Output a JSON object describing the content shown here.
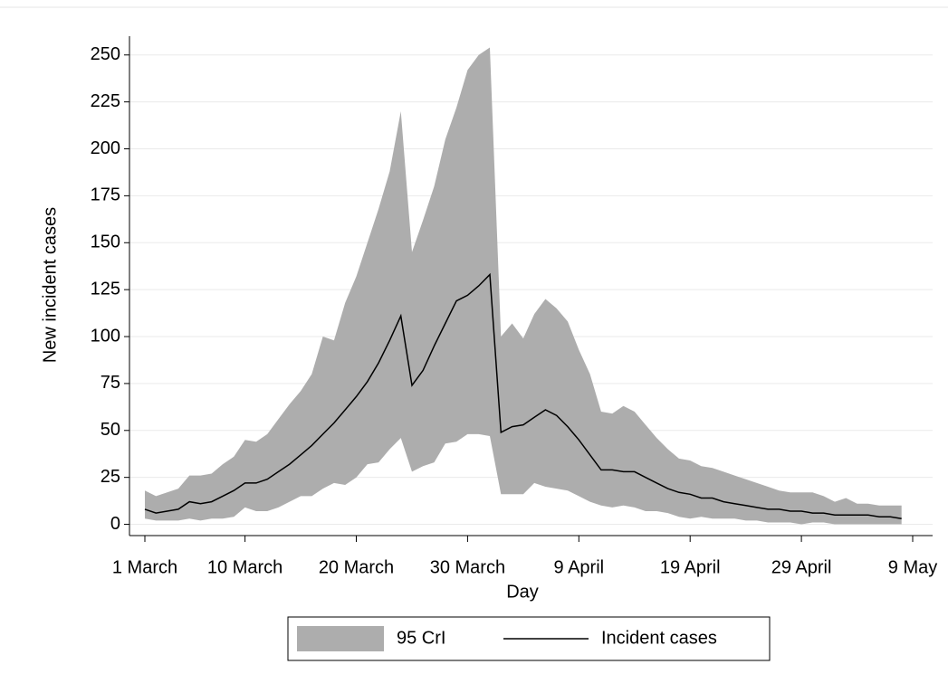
{
  "chart_data": {
    "type": "line",
    "ylabel": "New incident cases",
    "xlabel": "Day",
    "categories": [
      "1 March",
      null,
      null,
      null,
      null,
      null,
      null,
      null,
      null,
      "10 March",
      null,
      null,
      null,
      null,
      null,
      null,
      null,
      null,
      null,
      "20 March",
      null,
      null,
      null,
      null,
      null,
      null,
      null,
      null,
      null,
      "30 March",
      null,
      null,
      null,
      null,
      null,
      null,
      null,
      null,
      null,
      "9 April",
      null,
      null,
      null,
      null,
      null,
      null,
      null,
      null,
      null,
      "19 April",
      null,
      null,
      null,
      null,
      null,
      null,
      null,
      null,
      null,
      "29 April",
      null,
      null,
      null,
      null,
      null,
      null,
      null,
      null,
      null,
      "9 May"
    ],
    "band": {
      "name": "95 CrI",
      "color": "#adadad",
      "upper": [
        18,
        15,
        17,
        19,
        26,
        26,
        27,
        32,
        36,
        45,
        44,
        48,
        56,
        64,
        71,
        80,
        100,
        98,
        118,
        132,
        150,
        168,
        188,
        220,
        145,
        162,
        180,
        205,
        222,
        242,
        250,
        254,
        100,
        107,
        99,
        112,
        120,
        115,
        108,
        93,
        80,
        60,
        59,
        63,
        60,
        53,
        46,
        40,
        35,
        34,
        31,
        30,
        28,
        26,
        24,
        22,
        20,
        18,
        17,
        17,
        17,
        15,
        12,
        14,
        11,
        11,
        10,
        10,
        10,
        null
      ],
      "lower": [
        3,
        2,
        2,
        2,
        3,
        2,
        3,
        3,
        4,
        9,
        7,
        7,
        9,
        12,
        15,
        15,
        19,
        22,
        21,
        25,
        32,
        33,
        40,
        46,
        28,
        31,
        33,
        43,
        44,
        48,
        48,
        47,
        16,
        16,
        16,
        22,
        20,
        19,
        18,
        15,
        12,
        10,
        9,
        10,
        9,
        7,
        7,
        6,
        4,
        3,
        4,
        3,
        3,
        3,
        2,
        2,
        1,
        1,
        1,
        0,
        1,
        1,
        0,
        0,
        0,
        0,
        0,
        0,
        0,
        null
      ]
    },
    "series": [
      {
        "name": "Incident cases",
        "color": "#000000",
        "values": [
          8,
          6,
          7,
          8,
          12,
          11,
          12,
          15,
          18,
          22,
          22,
          24,
          28,
          32,
          37,
          42,
          48,
          54,
          61,
          68,
          76,
          86,
          98,
          111,
          74,
          82,
          95,
          107,
          119,
          122,
          127,
          133,
          49,
          52,
          53,
          57,
          61,
          58,
          52,
          45,
          37,
          29,
          29,
          28,
          28,
          25,
          22,
          19,
          17,
          16,
          14,
          14,
          12,
          11,
          10,
          9,
          8,
          8,
          7,
          7,
          6,
          6,
          5,
          5,
          5,
          5,
          4,
          4,
          3,
          null
        ]
      }
    ],
    "ylim": [
      -6,
      260
    ],
    "yticks": [
      0,
      25,
      50,
      75,
      100,
      125,
      150,
      175,
      200,
      225,
      250
    ],
    "grid": true
  }
}
